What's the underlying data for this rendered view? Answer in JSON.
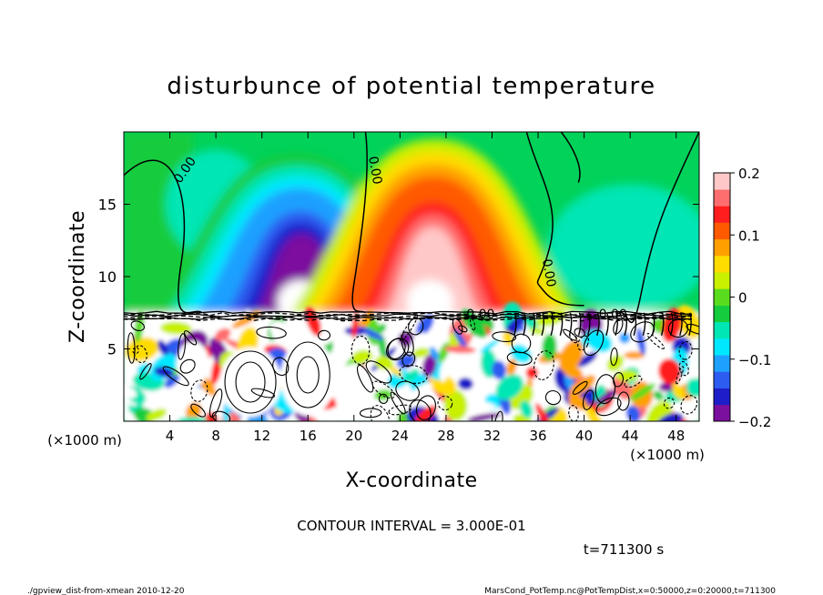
{
  "chart_data": {
    "type": "heatmap",
    "title": "disturbunce of potential temperature",
    "xlabel": "X-coordinate",
    "ylabel": "Z-coordinate",
    "x_unit_left": "(×1000 m)",
    "x_unit_right": "(×1000 m)",
    "xlim": [
      0,
      50
    ],
    "ylim": [
      0,
      20
    ],
    "x_ticks": [
      4,
      8,
      12,
      16,
      20,
      24,
      28,
      32,
      36,
      40,
      44,
      48
    ],
    "y_ticks": [
      5,
      10,
      15
    ],
    "colorbar": {
      "range": [
        -0.2,
        0.2
      ],
      "tick_values": [
        0.2,
        0.1,
        0,
        -0.1,
        -0.2
      ],
      "tick_labels": [
        "0.2",
        "0.1",
        "0",
        "−0.1",
        "−0.2"
      ],
      "colors": [
        "#7b0f9e",
        "#1e1ec8",
        "#2d5cf0",
        "#1ea0ff",
        "#00e8ff",
        "#00e6b4",
        "#14cc3c",
        "#5adc1e",
        "#c8f000",
        "#ffdc00",
        "#ffa000",
        "#ff5a00",
        "#ff1e1e",
        "#ff6e6e",
        "#ffc8c8"
      ]
    },
    "contour_labels": [
      "0.00",
      "0.00",
      "0.00",
      "0.00",
      "0.00"
    ],
    "contour_interval_text": "CONTOUR INTERVAL = 3.000E-01",
    "features": [
      {
        "kind": "cold anomaly",
        "x_center": 15,
        "z_base": 7.5,
        "z_top": 18.5,
        "peak": -0.2
      },
      {
        "kind": "warm anomaly",
        "x_center": 27,
        "z_base": 7.5,
        "z_top": 19.5,
        "peak": 0.2
      }
    ],
    "grid": false,
    "legend": "colorbar right"
  },
  "time_label": "t=711300 s",
  "footer": {
    "left": "./gpview_dist-from-xmean  2010-12-20",
    "right": "MarsCond_PotTemp.nc@PotTempDist,x=0:50000,z=0:20000,t=711300"
  }
}
